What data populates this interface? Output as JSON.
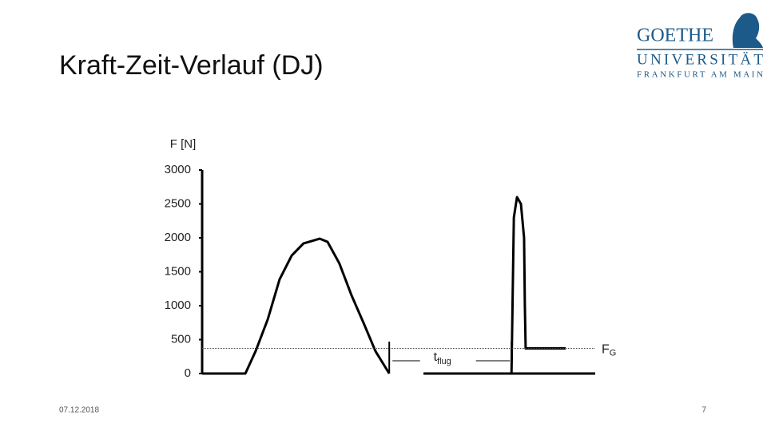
{
  "title": "Kraft-Zeit-Verlauf (DJ)",
  "date": "07.12.2018",
  "page_number": "7",
  "logo": {
    "line1": "GOETHE",
    "line2": "UNIVERSITÄT",
    "line3": "FRANKFURT AM MAIN"
  },
  "chart_data": {
    "type": "line",
    "ylabel": "F [N]",
    "ylim": [
      0,
      3000
    ],
    "yticks": [
      0,
      500,
      1000,
      1500,
      2000,
      2500,
      3000
    ],
    "xlim": [
      0,
      100
    ],
    "x": [
      0,
      11,
      13.6,
      16.7,
      19.7,
      22.8,
      25.8,
      29.9,
      31.9,
      34.9,
      38,
      41.1,
      44.1,
      47.6,
      52,
      56.3,
      78.7,
      79.3,
      80.1,
      81.1,
      81.9,
      82.1,
      82.3,
      92.5,
      95,
      78.7,
      100
    ],
    "series": [
      {
        "name": "F",
        "color": "#000000",
        "values": [
          0,
          0,
          329,
          800,
          1388,
          1741,
          1918,
          1988,
          1941,
          1624,
          1153,
          741,
          329,
          0,
          null,
          0,
          0,
          2300,
          2600,
          2500,
          2000,
          1000,
          370,
          370,
          null,
          0,
          0
        ]
      }
    ],
    "reference_line": {
      "value": 370,
      "label": "F",
      "label_sub": "G"
    },
    "flight_interval": {
      "start": 47.6,
      "end": 78.7,
      "label": "t",
      "label_sub": "flug"
    }
  }
}
